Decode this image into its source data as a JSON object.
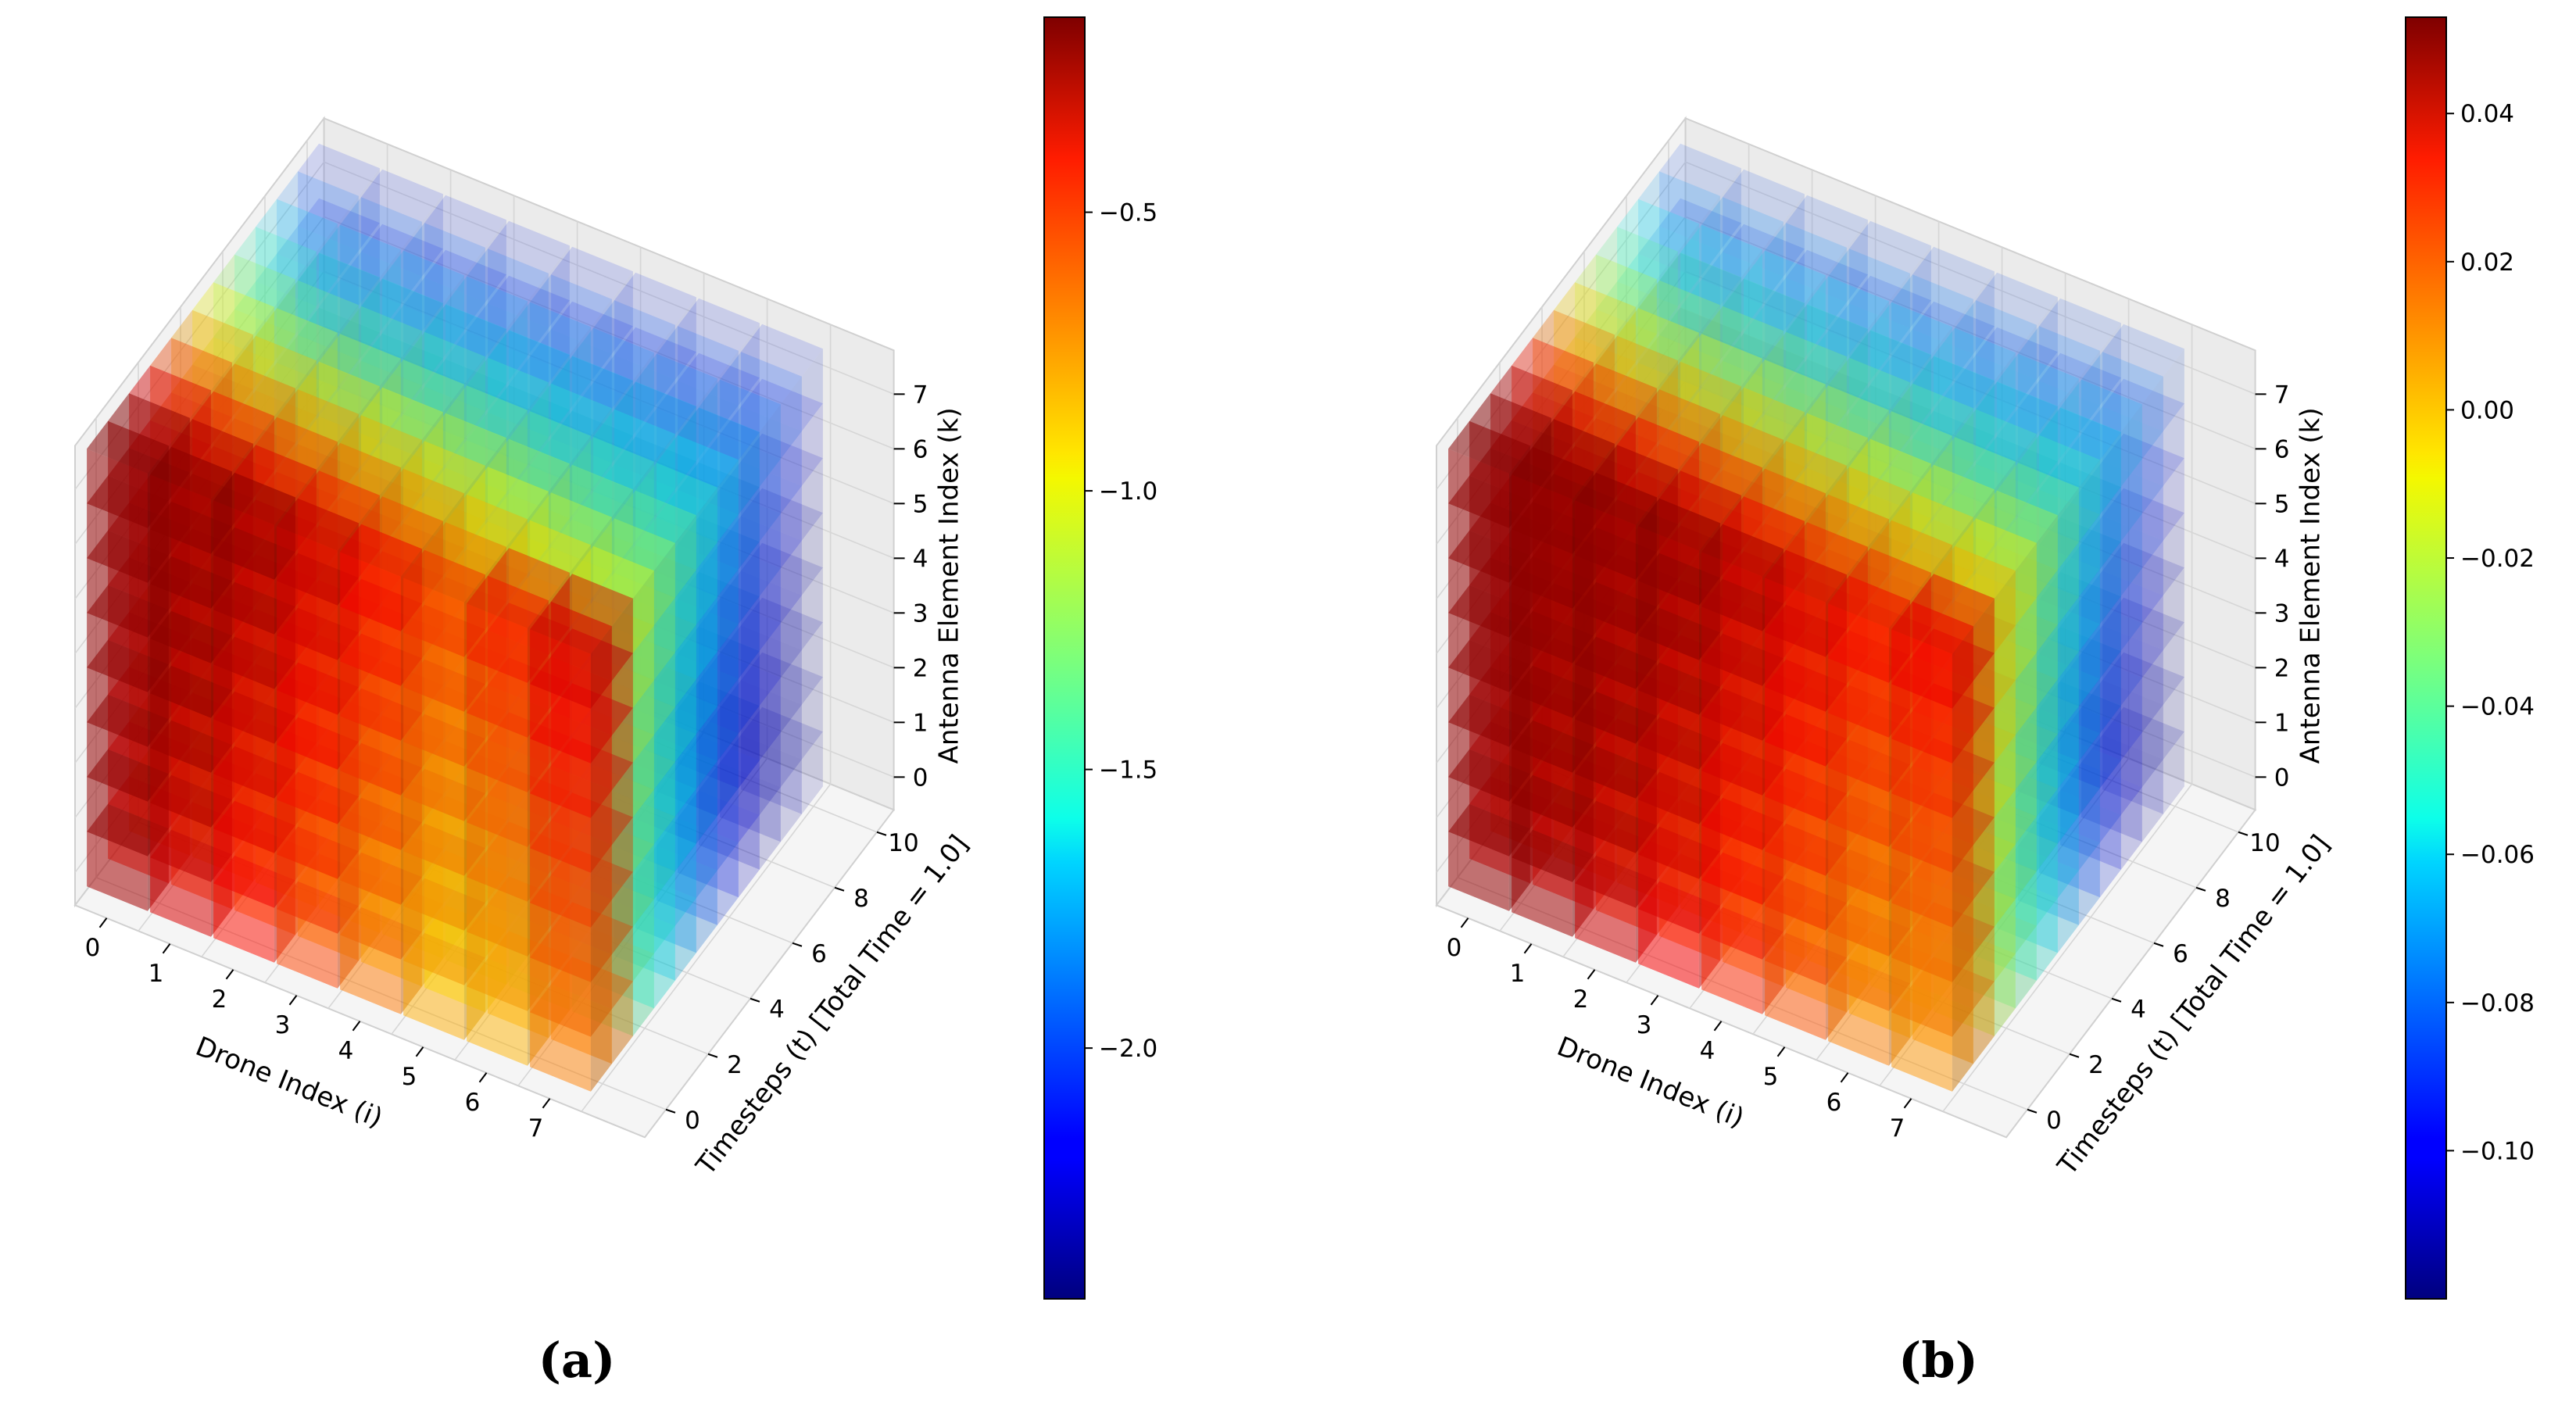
{
  "chart_data": [
    {
      "type": "voxel3d",
      "panel_label": "(a)",
      "xlabel": "Drone Index (i)",
      "ylabel": "Timesteps (t) [Total Time = 1.0]",
      "zlabel": "Antenna Element Index (k)",
      "x_ticks": [
        "0",
        "1",
        "2",
        "3",
        "4",
        "5",
        "6",
        "7"
      ],
      "y_ticks": [
        "0",
        "2",
        "4",
        "6",
        "8",
        "10"
      ],
      "z_ticks": [
        "0",
        "1",
        "2",
        "3",
        "4",
        "5",
        "6",
        "7"
      ],
      "grid": {
        "drones": 8,
        "timesteps": 11,
        "antennas": 8
      },
      "value_range": [
        -2.45,
        -0.15
      ],
      "colormap": "jet",
      "colorbar_ticks": [
        {
          "value": -0.5,
          "label": "−0.5"
        },
        {
          "value": -1.0,
          "label": "−1.0"
        },
        {
          "value": -1.5,
          "label": "−1.5"
        },
        {
          "value": -2.0,
          "label": "−2.0"
        }
      ],
      "pattern": {
        "hot_low": 0.95,
        "mid_value": 0.45,
        "cool_high": 0.05,
        "column_drone": 7,
        "column_value": 0.9
      }
    },
    {
      "type": "voxel3d",
      "panel_label": "(b)",
      "xlabel": "Drone Index (i)",
      "ylabel": "Timesteps (t) [Total Time = 1.0]",
      "zlabel": "Antenna Element Index (k)",
      "x_ticks": [
        "0",
        "1",
        "2",
        "3",
        "4",
        "5",
        "6",
        "7"
      ],
      "y_ticks": [
        "0",
        "2",
        "4",
        "6",
        "8",
        "10"
      ],
      "z_ticks": [
        "0",
        "1",
        "2",
        "3",
        "4",
        "5",
        "6",
        "7"
      ],
      "grid": {
        "drones": 8,
        "timesteps": 11,
        "antennas": 8
      },
      "value_range": [
        -0.12,
        0.053
      ],
      "colormap": "jet",
      "colorbar_ticks": [
        {
          "value": 0.04,
          "label": "0.04"
        },
        {
          "value": 0.02,
          "label": "0.02"
        },
        {
          "value": 0.0,
          "label": "0.00"
        },
        {
          "value": -0.02,
          "label": "−0.02"
        },
        {
          "value": -0.04,
          "label": "−0.04"
        },
        {
          "value": -0.06,
          "label": "−0.06"
        },
        {
          "value": -0.08,
          "label": "−0.08"
        },
        {
          "value": -0.1,
          "label": "−0.10"
        }
      ],
      "pattern": {
        "hot_low": 0.92,
        "mid_value": 0.6,
        "cool_high": 0.1,
        "column_drone": 7,
        "column_value": 0.88
      }
    }
  ]
}
